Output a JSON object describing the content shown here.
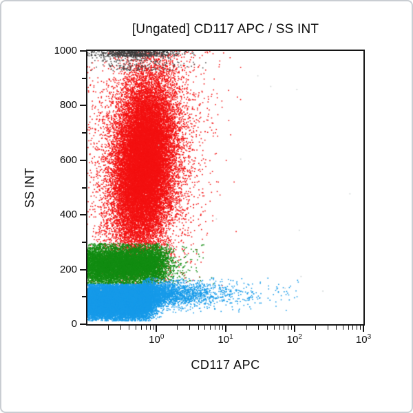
{
  "chart_data": {
    "type": "scatter",
    "title": "[Ungated] CD117 APC / SS INT",
    "xlabel": "CD117 APC",
    "ylabel": "SS INT",
    "grid": false,
    "frame_color": "#141414",
    "x_axis": {
      "scale": "log",
      "log_min": -1,
      "log_max": 3,
      "label_base": "10",
      "label_decades": [
        0,
        1,
        2,
        3
      ]
    },
    "y_axis": {
      "scale": "linear",
      "lim": [
        0,
        1000
      ],
      "major_ticks": [
        0,
        200,
        400,
        600,
        800,
        1000
      ],
      "minor_step": 100
    },
    "populations": [
      {
        "name": "granulocytes-red",
        "color": "#f31111",
        "n": 26000,
        "x": {
          "type": "normal",
          "mean": -0.18,
          "sd": 0.22
        },
        "y": {
          "type": "normal",
          "mean": 590,
          "sd": 158
        },
        "tilt": 0.00028,
        "halo": {
          "frac": 0.13,
          "scale": 2.0
        },
        "x_clip": [
          -1.02,
          1.3
        ],
        "y_clip": [
          140,
          1000
        ]
      },
      {
        "name": "offscale-scatter-gray",
        "color": "#4a4a4a",
        "n": 220,
        "x": {
          "type": "normal",
          "mean": -0.28,
          "sd": 0.34
        },
        "y": {
          "type": "uniform",
          "min": 928,
          "max": 980
        },
        "x_clip": [
          -1.0,
          0.8
        ],
        "y_clip": [
          900,
          1000
        ]
      },
      {
        "name": "saturated-offscale-gray",
        "color": "#3d3d3d",
        "n": 560,
        "x": {
          "type": "normal",
          "mean": -0.32,
          "sd": 0.3
        },
        "y": {
          "type": "uniform",
          "min": 980,
          "max": 1000
        },
        "x_clip": [
          -1.0,
          0.8
        ],
        "y_clip": [
          900,
          1000
        ]
      },
      {
        "name": "monocytes-green",
        "color": "#128c12",
        "n": 9500,
        "x": {
          "type": "uniform",
          "min": -1.03,
          "max": 0.05,
          "noise": 0.13
        },
        "y": {
          "type": "normal",
          "mean": 217,
          "sd": 36
        },
        "halo": {
          "frac": 0.07,
          "scale": 2.2
        },
        "x_clip": [
          -1.02,
          0.85
        ],
        "y_clip": [
          146,
          296
        ]
      },
      {
        "name": "lymphocytes-blue",
        "color": "#169ae9",
        "n": 17000,
        "x": {
          "type": "uniform",
          "min": -1.03,
          "max": -0.12,
          "noise": 0.09
        },
        "y": {
          "type": "normal",
          "mean": 84,
          "sd": 33
        },
        "x_clip": [
          -1.02,
          0.4
        ],
        "y_clip": [
          12,
          147
        ]
      },
      {
        "name": "lymphocytes-blue-cd117-tail",
        "color": "#169ae9",
        "n": 3000,
        "x": {
          "type": "exp",
          "start": -0.2,
          "mean": 0.38
        },
        "y": {
          "type": "normal",
          "mean": 110,
          "sd": 23
        },
        "halo": {
          "frac": 0.1,
          "scale": 1.8
        },
        "x_clip": [
          -0.25,
          2.1
        ],
        "y_clip": [
          40,
          170
        ]
      },
      {
        "name": "sparse-debris-gray",
        "color": "#c9cfcf",
        "n": 18,
        "x": {
          "type": "uniform",
          "min": -0.9,
          "max": 2.9,
          "noise": 0
        },
        "y": {
          "type": "uniform",
          "min": 60,
          "max": 950
        },
        "x_clip": [
          -1,
          3
        ],
        "y_clip": [
          0,
          1000
        ]
      }
    ]
  }
}
